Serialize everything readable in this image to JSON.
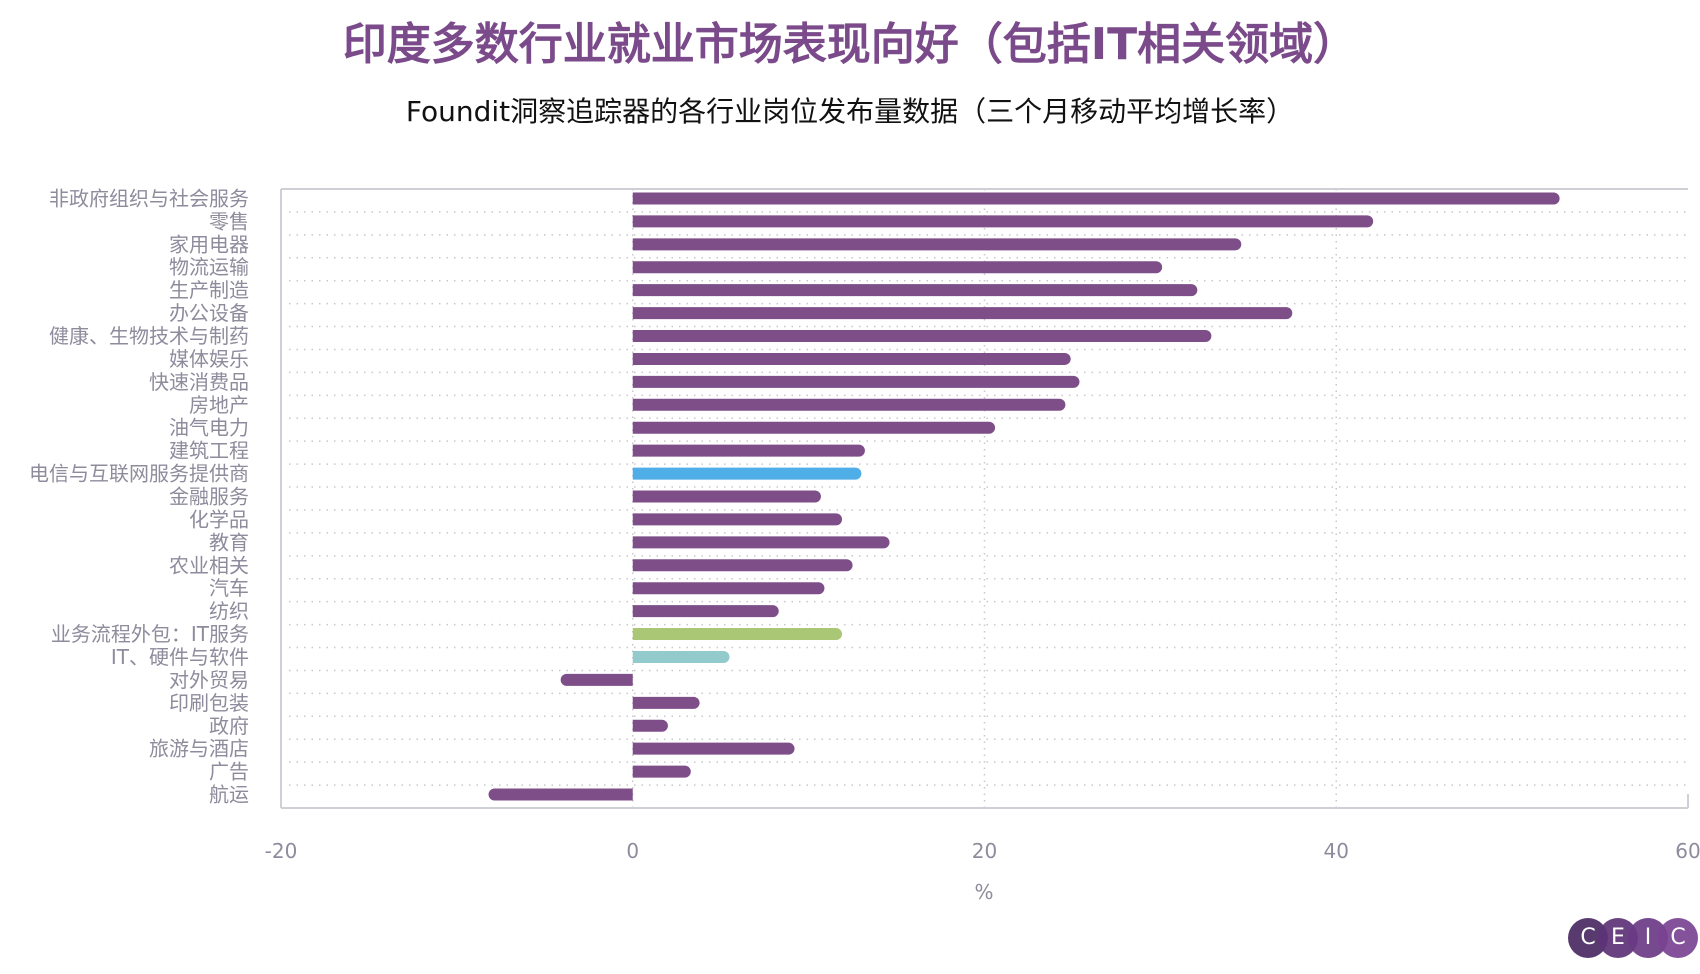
{
  "chart_data": {
    "type": "bar",
    "orientation": "horizontal",
    "title": "印度多数行业就业市场表现向好（包括IT相关领域）",
    "subtitle": "Foundit洞察追踪器的各行业岗位发布量数据（三个月移动平均增长率）",
    "xlabel": "%",
    "ylabel": "",
    "xlim": [
      -20,
      60
    ],
    "xticks": [
      "-20",
      "0",
      "20",
      "40",
      "60"
    ],
    "grid": true,
    "categories": [
      "非政府组织与社会服务",
      "零售",
      "家用电器",
      "物流运输",
      "生产制造",
      "办公设备",
      "健康、生物技术与制药",
      "媒体娱乐",
      "快速消费品",
      "房地产",
      "油气电力",
      "建筑工程",
      "电信与互联网服务提供商",
      "金融服务",
      "化学品",
      "教育",
      "农业相关",
      "汽车",
      "纺织",
      "业务流程外包：IT服务",
      "IT、硬件与软件",
      "对外贸易",
      "印刷包装",
      "政府",
      "旅游与酒店",
      "广告",
      "航运"
    ],
    "values": [
      52.7,
      42.1,
      34.6,
      30.1,
      32.1,
      37.5,
      32.9,
      24.9,
      25.4,
      24.6,
      20.6,
      13.2,
      13.0,
      10.7,
      11.9,
      14.6,
      12.5,
      10.9,
      8.3,
      11.9,
      5.5,
      -4.1,
      3.8,
      2.0,
      9.2,
      3.3,
      -8.2
    ],
    "colors": [
      "#7e4e89",
      "#7e4e89",
      "#7e4e89",
      "#7e4e89",
      "#7e4e89",
      "#7e4e89",
      "#7e4e89",
      "#7e4e89",
      "#7e4e89",
      "#7e4e89",
      "#7e4e89",
      "#7e4e89",
      "#4faee8",
      "#7e4e89",
      "#7e4e89",
      "#7e4e89",
      "#7e4e89",
      "#7e4e89",
      "#7e4e89",
      "#a9c775",
      "#93cacb",
      "#7e4e89",
      "#7e4e89",
      "#7e4e89",
      "#7e4e89",
      "#7e4e89",
      "#7e4e89"
    ]
  },
  "logo": {
    "letters": [
      "C",
      "E",
      "I",
      "C"
    ],
    "colors": [
      "#4a2a63",
      "#5e3378",
      "#6c3a86",
      "#7a4393"
    ]
  }
}
